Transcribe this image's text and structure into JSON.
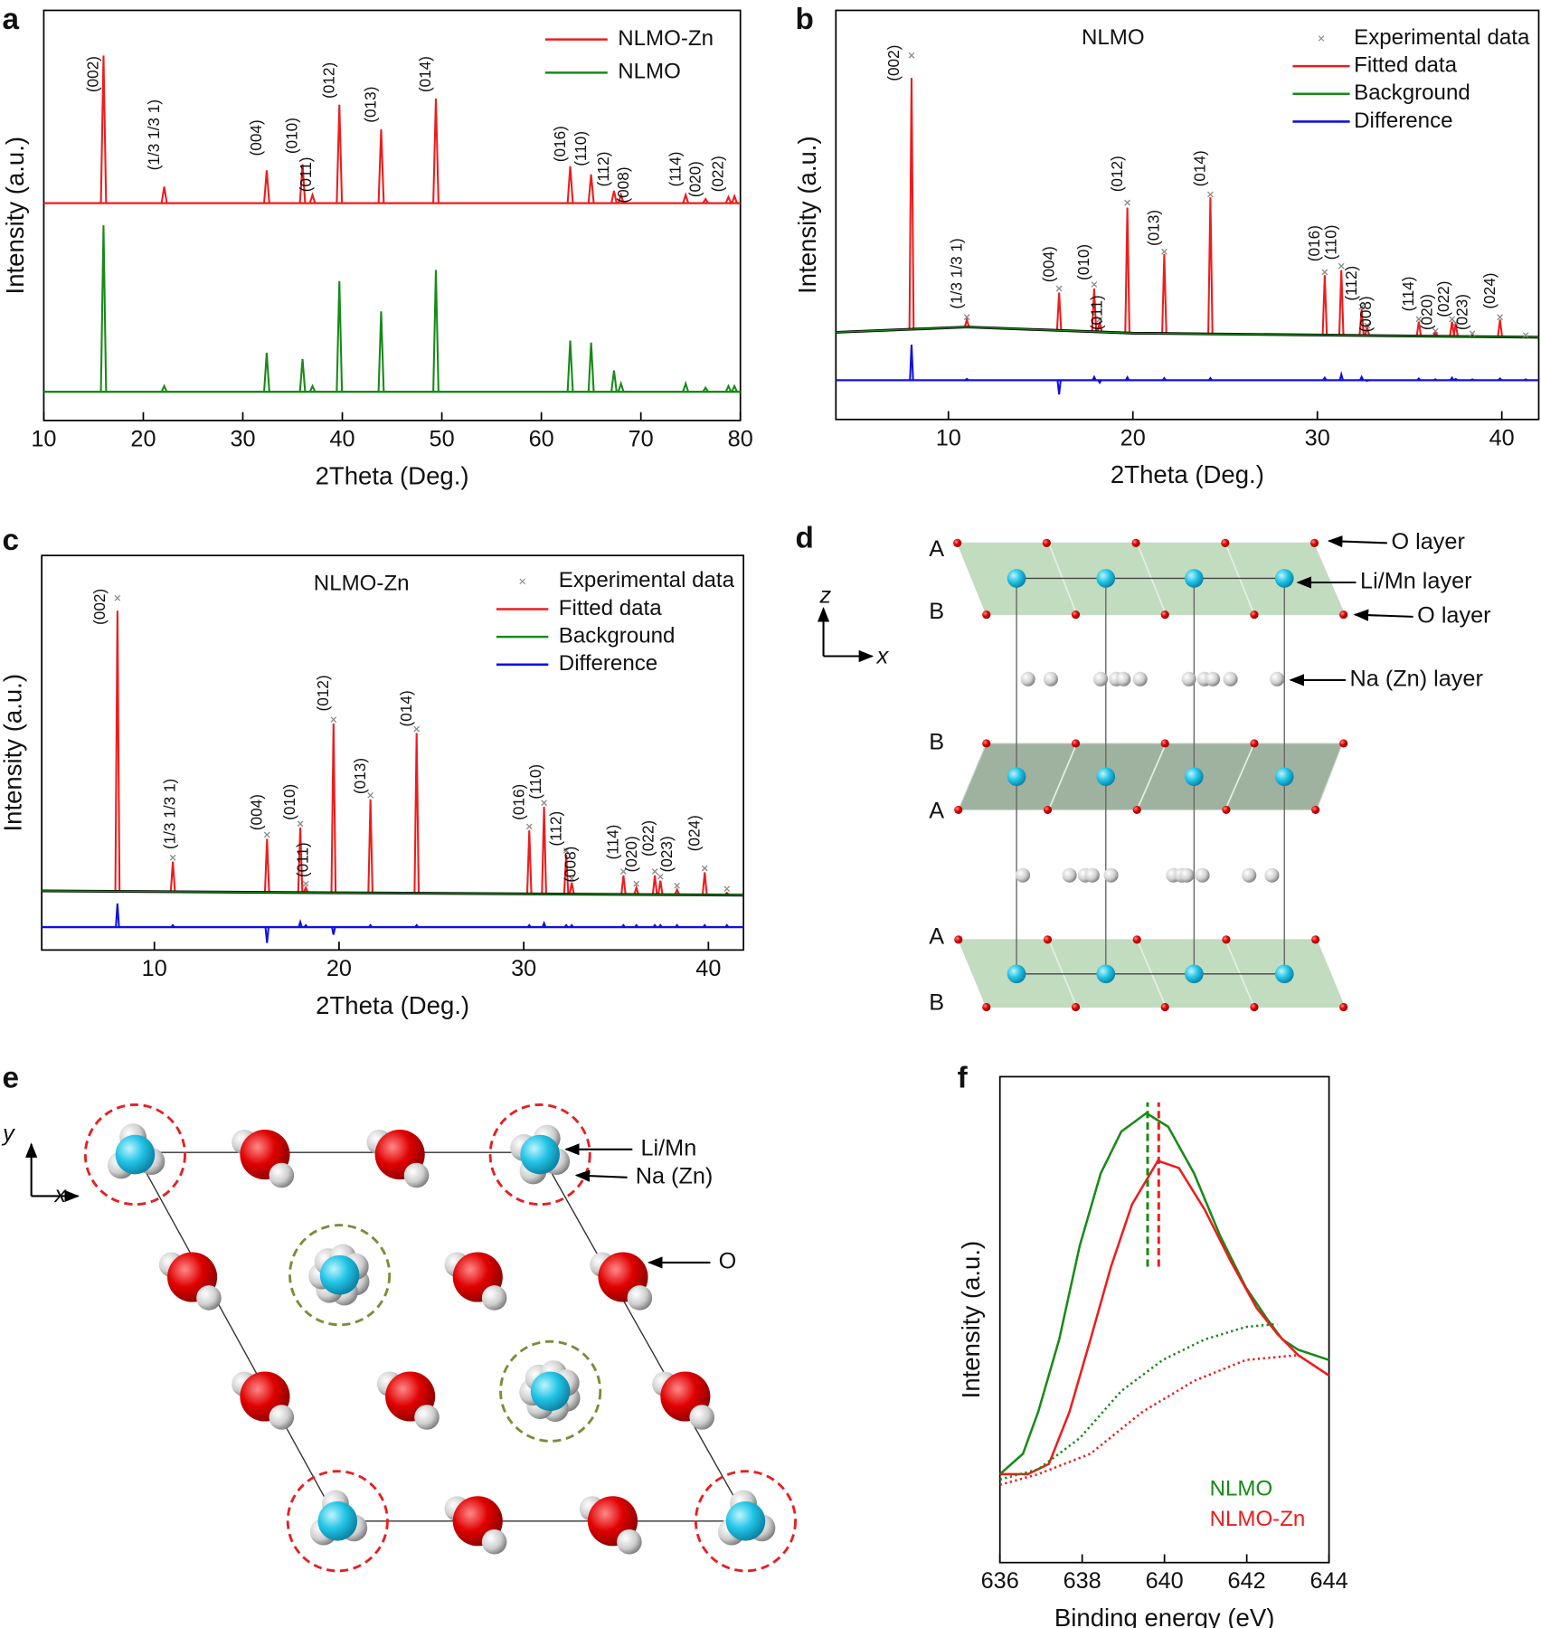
{
  "panel_labels": [
    "a",
    "b",
    "c",
    "d",
    "e",
    "f"
  ],
  "chart_data": [
    {
      "type": "xrd",
      "xlabel": "2Theta (Deg.)",
      "ylabel": "Intensity (a.u.)",
      "xlim": [
        10,
        80
      ],
      "xticks": [
        10,
        20,
        30,
        40,
        50,
        60,
        70,
        80
      ],
      "ylim": [
        0,
        100
      ],
      "legend": "upper right",
      "x": [
        16,
        22.1,
        32.4,
        36,
        37,
        39.7,
        43.9,
        49.4,
        62.9,
        65,
        67.3,
        68,
        74.5,
        76.5,
        78.8,
        79.4
      ],
      "series": [
        {
          "name": "NLMO-Zn",
          "color": "#ee1c1c",
          "baseline": 53,
          "values": [
            89,
            57,
            61,
            62.5,
            55,
            77,
            71,
            78.5,
            62,
            60,
            56,
            55,
            55,
            54,
            54.5,
            54.7
          ]
        },
        {
          "name": "NLMO",
          "color": "#178a17",
          "baseline": 7,
          "values": [
            47.6,
            8.4,
            16.5,
            15,
            8.4,
            34,
            26.6,
            36.7,
            19.5,
            19,
            12.2,
            9,
            9,
            8,
            8.4,
            8.4
          ]
        }
      ],
      "annotations": [
        {
          "label": "(002)",
          "x": 16,
          "y": 80
        },
        {
          "label": "(1/3 1/3 1)",
          "x": 22.1,
          "y": 61
        },
        {
          "label": "(004)",
          "x": 32.4,
          "y": 64.5
        },
        {
          "label": "(010)",
          "x": 36,
          "y": 65
        },
        {
          "label": "(011)",
          "x": 37.4,
          "y": 55.7
        },
        {
          "label": "(012)",
          "x": 39.7,
          "y": 78.5
        },
        {
          "label": "(013)",
          "x": 43.9,
          "y": 72.6
        },
        {
          "label": "(014)",
          "x": 49.4,
          "y": 80
        },
        {
          "label": "(016)",
          "x": 62.9,
          "y": 63
        },
        {
          "label": "(110)",
          "x": 65,
          "y": 62
        },
        {
          "label": "(112)",
          "x": 67.3,
          "y": 57
        },
        {
          "label": "(008)",
          "x": 69.3,
          "y": 53
        },
        {
          "label": "(114)",
          "x": 74.5,
          "y": 57
        },
        {
          "label": "(020)",
          "x": 76.5,
          "y": 54.4
        },
        {
          "label": "(022)",
          "x": 78.8,
          "y": 55.7
        }
      ]
    },
    {
      "type": "rietveld",
      "title": "NLMO",
      "xlabel": "2Theta (Deg.)",
      "ylabel": "Intensity (a.u.)",
      "xlim": [
        3.9,
        42
      ],
      "xticks": [
        10,
        20,
        30,
        40
      ],
      "ylim": [
        0,
        100
      ],
      "legend": "upper right",
      "x": [
        8,
        11,
        16,
        17.9,
        18.2,
        19.7,
        21.7,
        24.2,
        30.4,
        31.3,
        32.4,
        32.7,
        35.5,
        36.4,
        37.3,
        37.5,
        38.4,
        39.9,
        41.3
      ],
      "series": [
        {
          "name": "Experimental data",
          "color": "#8a8a8a",
          "marker": "x",
          "values": [
            89,
            25,
            32,
            33,
            24.5,
            53,
            41,
            55,
            36,
            37.5,
            27.5,
            23,
            24.5,
            21.6,
            24.5,
            23.6,
            21,
            25,
            20.6
          ]
        },
        {
          "name": "Fitted data",
          "color": "#ee1c1c",
          "values": [
            83.5,
            24.4,
            31,
            32,
            23.9,
            51.8,
            40.4,
            54.3,
            35.3,
            36.5,
            26.9,
            22.6,
            23.9,
            21.3,
            23.9,
            23.4,
            20.8,
            24.4,
            20.3
          ]
        },
        {
          "name": "Background",
          "color": "#178a17",
          "x": [
            3.9,
            11,
            20,
            42
          ],
          "values": [
            21.3,
            22.6,
            21.1,
            20.1
          ]
        },
        {
          "name": "Difference",
          "color": "#1010e0",
          "baseline": 9.6,
          "values": [
            18.3,
            9.9,
            6.1,
            10.4,
            9,
            10.3,
            10.1,
            10.1,
            10.2,
            11,
            10.4,
            9.4,
            10,
            9.8,
            10.2,
            9.9,
            9.8,
            10,
            9.8
          ]
        }
      ],
      "annotations": [
        {
          "label": "(002)",
          "x": 7.6,
          "y": 82.7
        },
        {
          "label": "(1/3 1/3 1)",
          "x": 11,
          "y": 27
        },
        {
          "label": "(004)",
          "x": 16,
          "y": 33.5
        },
        {
          "label": "(010)",
          "x": 17.9,
          "y": 34
        },
        {
          "label": "(011)",
          "x": 18.6,
          "y": 21.8
        },
        {
          "label": "(012)",
          "x": 19.7,
          "y": 55.6
        },
        {
          "label": "(013)",
          "x": 21.7,
          "y": 42.4
        },
        {
          "label": "(014)",
          "x": 24.2,
          "y": 56.9
        },
        {
          "label": "(016)",
          "x": 30.4,
          "y": 38.6
        },
        {
          "label": "(110)",
          "x": 31.3,
          "y": 39
        },
        {
          "label": "(112)",
          "x": 32.4,
          "y": 29
        },
        {
          "label": "(008)",
          "x": 33.2,
          "y": 21.3
        },
        {
          "label": "(114)",
          "x": 35.5,
          "y": 26.4
        },
        {
          "label": "(020)",
          "x": 36.5,
          "y": 21.8
        },
        {
          "label": "(022)",
          "x": 37.4,
          "y": 25
        },
        {
          "label": "(023)",
          "x": 38.4,
          "y": 21.8
        },
        {
          "label": "(024)",
          "x": 39.9,
          "y": 27
        }
      ]
    },
    {
      "type": "rietveld",
      "title": "NLMO-Zn",
      "xlabel": "2Theta (Deg.)",
      "ylabel": "Intensity (a.u.)",
      "xlim": [
        3.9,
        41.9
      ],
      "xticks": [
        10,
        20,
        30,
        40
      ],
      "ylim": [
        0,
        100
      ],
      "legend": "upper right",
      "x": [
        8,
        11,
        16.1,
        17.9,
        18.2,
        19.7,
        21.7,
        24.2,
        30.3,
        31.1,
        32.3,
        32.6,
        35.4,
        36.1,
        37.1,
        37.4,
        38.3,
        39.8,
        41
      ],
      "series": [
        {
          "name": "Experimental data",
          "color": "#8a8a8a",
          "marker": "x",
          "values": [
            89.2,
            23.4,
            29.2,
            32,
            16.8,
            58.4,
            39.2,
            56,
            31.3,
            37.3,
            25.2,
            18.1,
            19.9,
            16.8,
            19.9,
            18.6,
            16.3,
            20.7,
            15.5
          ]
        },
        {
          "name": "Fitted data",
          "color": "#ee1c1c",
          "values": [
            86,
            22.4,
            28.2,
            31,
            15.8,
            57.4,
            38.2,
            55,
            30.3,
            36.3,
            24.2,
            17.1,
            18.9,
            15.8,
            18.9,
            17.6,
            15.3,
            19.7,
            14.5
          ]
        },
        {
          "name": "Background",
          "color": "#178a17",
          "x": [
            3.9,
            20,
            41.9
          ],
          "values": [
            15,
            14.5,
            13.9
          ]
        },
        {
          "name": "Difference",
          "color": "#1010e0",
          "baseline": 5.8,
          "values": [
            11.8,
            6.3,
            1.8,
            7.1,
            6.3,
            3.9,
            6.3,
            6.3,
            6.3,
            6.8,
            6.3,
            6.3,
            6.3,
            6.3,
            6.3,
            6.3,
            6.3,
            6.3,
            6.3
          ]
        }
      ],
      "annotations": [
        {
          "label": "(002)",
          "x": 7.6,
          "y": 82.4
        },
        {
          "label": "(1/3 1/3 1)",
          "x": 11.4,
          "y": 25.5
        },
        {
          "label": "(004)",
          "x": 16.1,
          "y": 30.3
        },
        {
          "label": "(010)",
          "x": 17.9,
          "y": 32.9
        },
        {
          "label": "(011)",
          "x": 18.6,
          "y": 18.4
        },
        {
          "label": "(012)",
          "x": 19.7,
          "y": 60.5
        },
        {
          "label": "(013)",
          "x": 21.7,
          "y": 39.5
        },
        {
          "label": "(014)",
          "x": 24.2,
          "y": 56.6
        },
        {
          "label": "(016)",
          "x": 30.3,
          "y": 32.9
        },
        {
          "label": "(110)",
          "x": 31.2,
          "y": 38.2
        },
        {
          "label": "(112)",
          "x": 32.3,
          "y": 26.3
        },
        {
          "label": "(008)",
          "x": 33.1,
          "y": 17.1
        },
        {
          "label": "(114)",
          "x": 35.4,
          "y": 22.9
        },
        {
          "label": "(020)",
          "x": 36.4,
          "y": 19.7
        },
        {
          "label": "(022)",
          "x": 37.3,
          "y": 23.7
        },
        {
          "label": "(023)",
          "x": 38.3,
          "y": 19.7
        },
        {
          "label": "(024)",
          "x": 39.8,
          "y": 25
        }
      ]
    },
    {
      "type": "line",
      "xlabel": "Binding energy (eV)",
      "ylabel": "Intensity (a.u.)",
      "xlim": [
        636,
        644
      ],
      "xticks": [
        636,
        638,
        640,
        642,
        644
      ],
      "ylim": [
        0,
        100
      ],
      "legend": "lower right",
      "series": [
        {
          "name": "NLMO",
          "color": "#178a17",
          "x": [
            636,
            636.56,
            636.93,
            637.44,
            637.94,
            638.45,
            638.95,
            639.56,
            640.09,
            640.72,
            641.35,
            641.98,
            642.49,
            642.87,
            643.25,
            644
          ],
          "values": [
            18.2,
            22.4,
            31,
            45.9,
            65.2,
            80.1,
            88.7,
            92.5,
            89.7,
            80.1,
            67.3,
            56.6,
            50.2,
            45.9,
            43.8,
            41.7
          ]
        },
        {
          "name": "NLMO-Zn",
          "color": "#ee1c1c",
          "x": [
            636,
            636.68,
            637.19,
            637.69,
            638.2,
            638.7,
            639.21,
            639.84,
            640.35,
            640.98,
            641.61,
            642.24,
            642.75,
            643.25,
            644
          ],
          "values": [
            18.2,
            18.2,
            20.3,
            31,
            45.9,
            60.9,
            73.7,
            82.7,
            81.2,
            72.6,
            62,
            52.4,
            47,
            42.7,
            38.5
          ]
        },
        {
          "color": "#178a17",
          "linestyle": "dotted",
          "x": [
            636,
            636.93,
            637.94,
            638.95,
            639.96,
            640.97,
            641.98,
            642.74
          ],
          "values": [
            17.1,
            19.2,
            25.6,
            35.3,
            41.7,
            45.9,
            48.5,
            49.1
          ]
        },
        {
          "color": "#ee1c1c",
          "linestyle": "dotted",
          "x": [
            636,
            636.93,
            638.2,
            639.46,
            640.72,
            641.98,
            643.25,
            644
          ],
          "values": [
            16,
            18.2,
            22.4,
            31,
            37.4,
            41.7,
            42.7,
            38.5
          ]
        }
      ],
      "vlines": [
        {
          "x": 639.59,
          "y": [
            60.9,
            94.7
          ],
          "color": "#178a17"
        },
        {
          "x": 639.86,
          "y": [
            60.9,
            94.7
          ],
          "color": "#ee1c1c"
        }
      ]
    }
  ],
  "structure_d": {
    "layer_letters": [
      "A",
      "B",
      "B",
      "A",
      "A",
      "B"
    ],
    "labels": [
      "O layer",
      "Li/Mn layer",
      "O layer",
      "Na (Zn) layer"
    ],
    "axes": [
      "z",
      "x"
    ]
  },
  "structure_e": {
    "axes": [
      "y",
      "x"
    ],
    "labels": [
      "Li/Mn",
      "Na (Zn)",
      "O"
    ]
  }
}
